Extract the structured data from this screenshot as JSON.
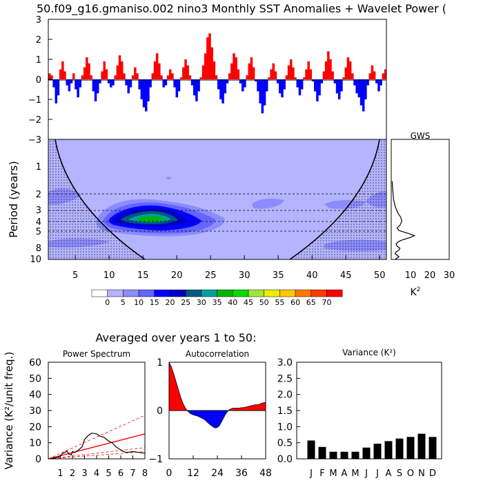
{
  "title": "50.f09_g16.gmaniso.002 nino3 Monthly SST Anomalies + Wavelet Power (",
  "colors": {
    "positive": "#ff0000",
    "negative": "#0000ff",
    "spectrum": "#000000",
    "red_noise": "#ff0000",
    "bars": "#000000"
  },
  "legend_levels": [
    "0",
    "5",
    "10",
    "15",
    "20",
    "25",
    "30",
    "35",
    "40",
    "45",
    "50",
    "55",
    "60",
    "65",
    "70"
  ],
  "legend_colors": [
    "#ffffff",
    "#b4b4ff",
    "#8c8cff",
    "#6464ff",
    "#0000ff",
    "#0000c8",
    "#005a82",
    "#00a0a0",
    "#00b400",
    "#00dc00",
    "#a0e632",
    "#e6f000",
    "#ffc800",
    "#ff7800",
    "#ff3c00",
    "#ff0000"
  ],
  "wavelet": {
    "ylabel": "Period (years)",
    "gws_label": "GWS",
    "gws_unit": "K",
    "gws_unit_exp": "2",
    "period_ticks": [
      "1",
      "2",
      "3",
      "4",
      "5",
      "8",
      "10"
    ],
    "gws_xticks": [
      "10",
      "20",
      "30"
    ]
  },
  "averaged_title": "Averaged over years 1 to 50:",
  "panel_ylabel": "Variance (K²/unit freq.)",
  "chart_data": [
    {
      "type": "area",
      "name": "nino3 SST anomaly time series",
      "xlim": [
        1,
        51
      ],
      "ylim": [
        -3,
        3
      ],
      "yticks": [
        "3",
        "2",
        "1",
        "0",
        "−1",
        "−2",
        "−3"
      ],
      "y": [
        0.3,
        0.2,
        -0.4,
        -1.2,
        -0.8,
        0.5,
        0.9,
        0.4,
        -0.3,
        -0.6,
        -0.2,
        0.3,
        -0.5,
        -0.9,
        -0.4,
        0.2,
        0.6,
        1.1,
        0.8,
        0.2,
        -0.6,
        -1.1,
        -0.7,
        -0.2,
        0.4,
        0.9,
        0.5,
        -0.2,
        -0.4,
        -0.3,
        0.2,
        0.7,
        1.2,
        0.9,
        0.3,
        -0.3,
        -0.7,
        -0.4,
        0.2,
        0.6,
        0.3,
        -0.5,
        -1.0,
        -1.4,
        -1.6,
        -1.1,
        -0.4,
        0.3,
        0.9,
        1.3,
        0.8,
        0.2,
        -0.4,
        -0.3,
        0.2,
        0.5,
        0.3,
        -0.4,
        -0.9,
        -0.6,
        0.1,
        0.6,
        1.0,
        0.7,
        0.2,
        -0.3,
        -0.8,
        -1.1,
        -0.6,
        0.1,
        0.7,
        1.3,
        2.1,
        2.3,
        1.6,
        0.9,
        0.2,
        -0.5,
        -1.0,
        -1.2,
        -0.7,
        -0.2,
        0.3,
        0.8,
        1.3,
        1.1,
        0.5,
        -0.2,
        -0.6,
        -0.4,
        0.2,
        0.8,
        1.1,
        0.6,
        -0.1,
        -0.6,
        -1.2,
        -1.7,
        -1.3,
        -0.6,
        0.1,
        0.5,
        0.8,
        0.4,
        -0.2,
        -0.7,
        -0.9,
        -0.5,
        0.2,
        0.7,
        1.0,
        0.6,
        0.1,
        -0.4,
        -0.8,
        -0.5,
        0.1,
        0.5,
        0.9,
        0.5,
        -0.1,
        -0.6,
        -1.1,
        -0.8,
        -0.2,
        0.4,
        0.9,
        1.4,
        1.0,
        0.4,
        -0.2,
        -0.7,
        -1.0,
        -0.6,
        0.1,
        0.6,
        1.1,
        0.9,
        0.3,
        -0.3,
        -0.7,
        -0.9,
        -1.3,
        -1.6,
        -1.0,
        -0.3,
        0.3,
        0.7,
        0.4,
        -0.2,
        -0.6,
        -0.3,
        0.3,
        0.5
      ]
    },
    {
      "type": "line",
      "name": "Global Wavelet Spectrum",
      "xlim": [
        0,
        30
      ],
      "period": [
        0.5,
        0.7,
        1,
        1.3,
        1.7,
        2,
        2.3,
        2.7,
        3,
        3.3,
        3.7,
        4,
        4.3,
        4.7,
        5,
        5.5,
        6,
        6.5,
        7,
        7.5,
        8,
        8.5,
        9,
        9.5,
        10
      ],
      "power": [
        0.5,
        0.8,
        1.2,
        2.0,
        3.5,
        5.0,
        5.5,
        4.5,
        3.0,
        4.0,
        9.0,
        12.0,
        10.0,
        6.0,
        4.0,
        2.5,
        3.0,
        4.5,
        4.0,
        2.5,
        2.0,
        3.0,
        4.0,
        3.0,
        2.0
      ]
    },
    {
      "type": "line",
      "title": "Power Spectrum",
      "xlim": [
        0,
        8
      ],
      "ylim": [
        0,
        60
      ],
      "xticks": [
        "1",
        "2",
        "3",
        "4",
        "5",
        "6",
        "7",
        "8"
      ],
      "yticks": [
        "0",
        "10",
        "20",
        "30",
        "40",
        "50",
        "60"
      ],
      "period": [
        0.2,
        0.5,
        0.8,
        1.0,
        1.2,
        1.4,
        1.5,
        1.7,
        1.9,
        2.0,
        2.2,
        2.5,
        2.8,
        3.0,
        3.3,
        3.6,
        4.0,
        4.3,
        4.6,
        5.0,
        5.3,
        5.6,
        5.9,
        6.2,
        6.5,
        7.0,
        7.5,
        8.0
      ],
      "spectrum": [
        0.2,
        0.5,
        1.0,
        2.0,
        3.5,
        4.0,
        5.0,
        3.0,
        2.5,
        4.5,
        4.0,
        5.5,
        7.5,
        12.0,
        14.5,
        16.0,
        15.5,
        14.0,
        13.5,
        11.0,
        10.0,
        7.5,
        6.0,
        4.5,
        4.0,
        4.5,
        4.0,
        3.5
      ],
      "red_noise_lines": [
        {
          "style": "solid",
          "y_at_0": 0,
          "y_at_8": 15.5
        },
        {
          "style": "dashed",
          "y_at_0": 0,
          "y_at_8": 27.0
        },
        {
          "style": "dashed",
          "y_at_0": 0,
          "y_at_8": 7.0
        },
        {
          "style": "dashed",
          "y_at_0": 0,
          "y_at_8": 4.5
        }
      ]
    },
    {
      "type": "area",
      "title": "Autocorrelation",
      "xlim": [
        0,
        48
      ],
      "ylim": [
        -1,
        1
      ],
      "xticks": [
        "0",
        "12",
        "24",
        "36",
        "48"
      ],
      "yticks": [
        "1",
        "0",
        "−1"
      ],
      "lag": [
        0,
        1,
        2,
        3,
        4,
        5,
        6,
        7,
        8,
        9,
        10,
        11,
        12,
        13,
        14,
        15,
        16,
        17,
        18,
        19,
        20,
        21,
        22,
        23,
        24,
        25,
        26,
        27,
        28,
        29,
        30,
        31,
        32,
        33,
        34,
        35,
        36,
        37,
        38,
        39,
        40,
        41,
        42,
        43,
        44,
        45,
        46,
        47,
        48
      ],
      "acf": [
        1.0,
        0.92,
        0.8,
        0.66,
        0.52,
        0.38,
        0.25,
        0.14,
        0.06,
        0.0,
        -0.04,
        -0.07,
        -0.09,
        -0.1,
        -0.11,
        -0.13,
        -0.15,
        -0.17,
        -0.2,
        -0.24,
        -0.28,
        -0.31,
        -0.34,
        -0.36,
        -0.35,
        -0.31,
        -0.24,
        -0.16,
        -0.08,
        -0.02,
        0.02,
        0.04,
        0.05,
        0.05,
        0.05,
        0.05,
        0.06,
        0.06,
        0.07,
        0.08,
        0.09,
        0.1,
        0.11,
        0.12,
        0.12,
        0.13,
        0.15,
        0.16,
        0.17
      ]
    },
    {
      "type": "bar",
      "title": "Variance (K²)",
      "ylim": [
        0,
        3.0
      ],
      "yticks": [
        "0.0",
        "0.5",
        "1.0",
        "1.5",
        "2.0",
        "2.5",
        "3.0"
      ],
      "categories": [
        "J",
        "F",
        "M",
        "A",
        "M",
        "J",
        "J",
        "A",
        "S",
        "O",
        "N",
        "D"
      ],
      "values": [
        0.57,
        0.37,
        0.22,
        0.22,
        0.22,
        0.35,
        0.47,
        0.55,
        0.63,
        0.68,
        0.78,
        0.68
      ]
    }
  ]
}
